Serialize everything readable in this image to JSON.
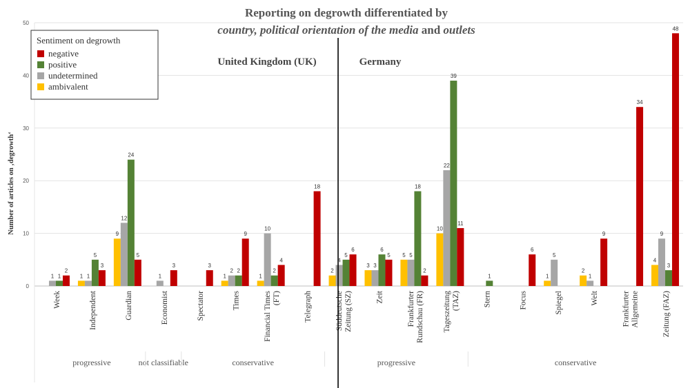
{
  "chart_data": {
    "type": "bar",
    "title": "Reporting on degrowth differentiated by",
    "subtitle_parts": [
      {
        "text": "country, political orientation of the media",
        "italic": true
      },
      {
        "text": " and ",
        "italic": false
      },
      {
        "text": "outlets",
        "italic": true
      }
    ],
    "ylabel": "Number of articles on ‚degrowth‘",
    "ylim": [
      0,
      50
    ],
    "yticks": [
      0,
      10,
      20,
      30,
      40,
      50
    ],
    "grid": true,
    "legend": {
      "title": "Sentiment on degrowth",
      "placement": "top-left",
      "entries": [
        "negative",
        "positive",
        "undetermined",
        "ambivalent"
      ]
    },
    "series_colors": {
      "ambivalent": "#FFC000",
      "undetermined": "#A6A6A6",
      "positive": "#548235",
      "negative": "#C00000"
    },
    "bar_order": [
      "ambivalent",
      "undetermined",
      "positive",
      "negative"
    ],
    "countries": [
      "United Kingdom (UK)",
      "Germany"
    ],
    "outlets": [
      {
        "label": [
          "Week"
        ],
        "values": {
          "ambivalent": null,
          "undetermined": 1,
          "positive": 1,
          "negative": 2
        }
      },
      {
        "label": [
          "Independent"
        ],
        "values": {
          "ambivalent": 1,
          "undetermined": 1,
          "positive": 5,
          "negative": 3
        }
      },
      {
        "label": [
          "Guardian"
        ],
        "values": {
          "ambivalent": 9,
          "undetermined": 12,
          "positive": 24,
          "negative": 5
        }
      },
      {
        "label": [
          "Economist"
        ],
        "values": {
          "ambivalent": null,
          "undetermined": 1,
          "positive": null,
          "negative": 3
        }
      },
      {
        "label": [
          "Spectator"
        ],
        "values": {
          "ambivalent": null,
          "undetermined": null,
          "positive": null,
          "negative": 3
        }
      },
      {
        "label": [
          "Times"
        ],
        "values": {
          "ambivalent": 1,
          "undetermined": 2,
          "positive": 2,
          "negative": 9
        }
      },
      {
        "label": [
          "Financial Times",
          "(FT)"
        ],
        "values": {
          "ambivalent": 1,
          "undetermined": 10,
          "positive": 2,
          "negative": 4
        }
      },
      {
        "label": [
          "Telegraph"
        ],
        "values": {
          "ambivalent": null,
          "undetermined": null,
          "positive": null,
          "negative": 18
        }
      },
      {
        "label": [
          "Süddeutsche",
          "Zeitung (SZ)"
        ],
        "values": {
          "ambivalent": 2,
          "undetermined": 4,
          "positive": 5,
          "negative": 6
        }
      },
      {
        "label": [
          "Zeit"
        ],
        "values": {
          "ambivalent": 3,
          "undetermined": 3,
          "positive": 6,
          "negative": 5
        }
      },
      {
        "label": [
          "Frankfurter",
          "Rundschau (FR)"
        ],
        "values": {
          "ambivalent": 5,
          "undetermined": 5,
          "positive": 18,
          "negative": 2
        }
      },
      {
        "label": [
          "Tageszeitung",
          "(TAZ)"
        ],
        "values": {
          "ambivalent": 10,
          "undetermined": 22,
          "positive": 39,
          "negative": 11
        }
      },
      {
        "label": [
          "Stern"
        ],
        "values": {
          "ambivalent": null,
          "undetermined": null,
          "positive": 1,
          "negative": null
        }
      },
      {
        "label": [
          "Focus"
        ],
        "values": {
          "ambivalent": null,
          "undetermined": null,
          "positive": null,
          "negative": 6
        }
      },
      {
        "label": [
          "Spiegel"
        ],
        "values": {
          "ambivalent": 1,
          "undetermined": 5,
          "positive": null,
          "negative": null
        }
      },
      {
        "label": [
          "Welt"
        ],
        "values": {
          "ambivalent": 2,
          "undetermined": 1,
          "positive": null,
          "negative": 9
        }
      },
      {
        "label": [
          "Frankfurter",
          "Allgemeine"
        ],
        "values": {
          "ambivalent": null,
          "undetermined": null,
          "positive": null,
          "negative": 34
        }
      },
      {
        "label": [
          "Zeitung (FAZ)"
        ],
        "values": {
          "ambivalent": 4,
          "undetermined": 9,
          "positive": 3,
          "negative": 48
        }
      }
    ],
    "groups": [
      {
        "label": "progressive",
        "from": 0,
        "to": 2
      },
      {
        "label": "not classifiable",
        "from": 3,
        "to": 3
      },
      {
        "label": "conservative",
        "from": 4,
        "to": 7
      },
      {
        "label": "progressive",
        "from": 8,
        "to": 11
      },
      {
        "label": "conservative",
        "from": 12,
        "to": 17
      }
    ]
  }
}
